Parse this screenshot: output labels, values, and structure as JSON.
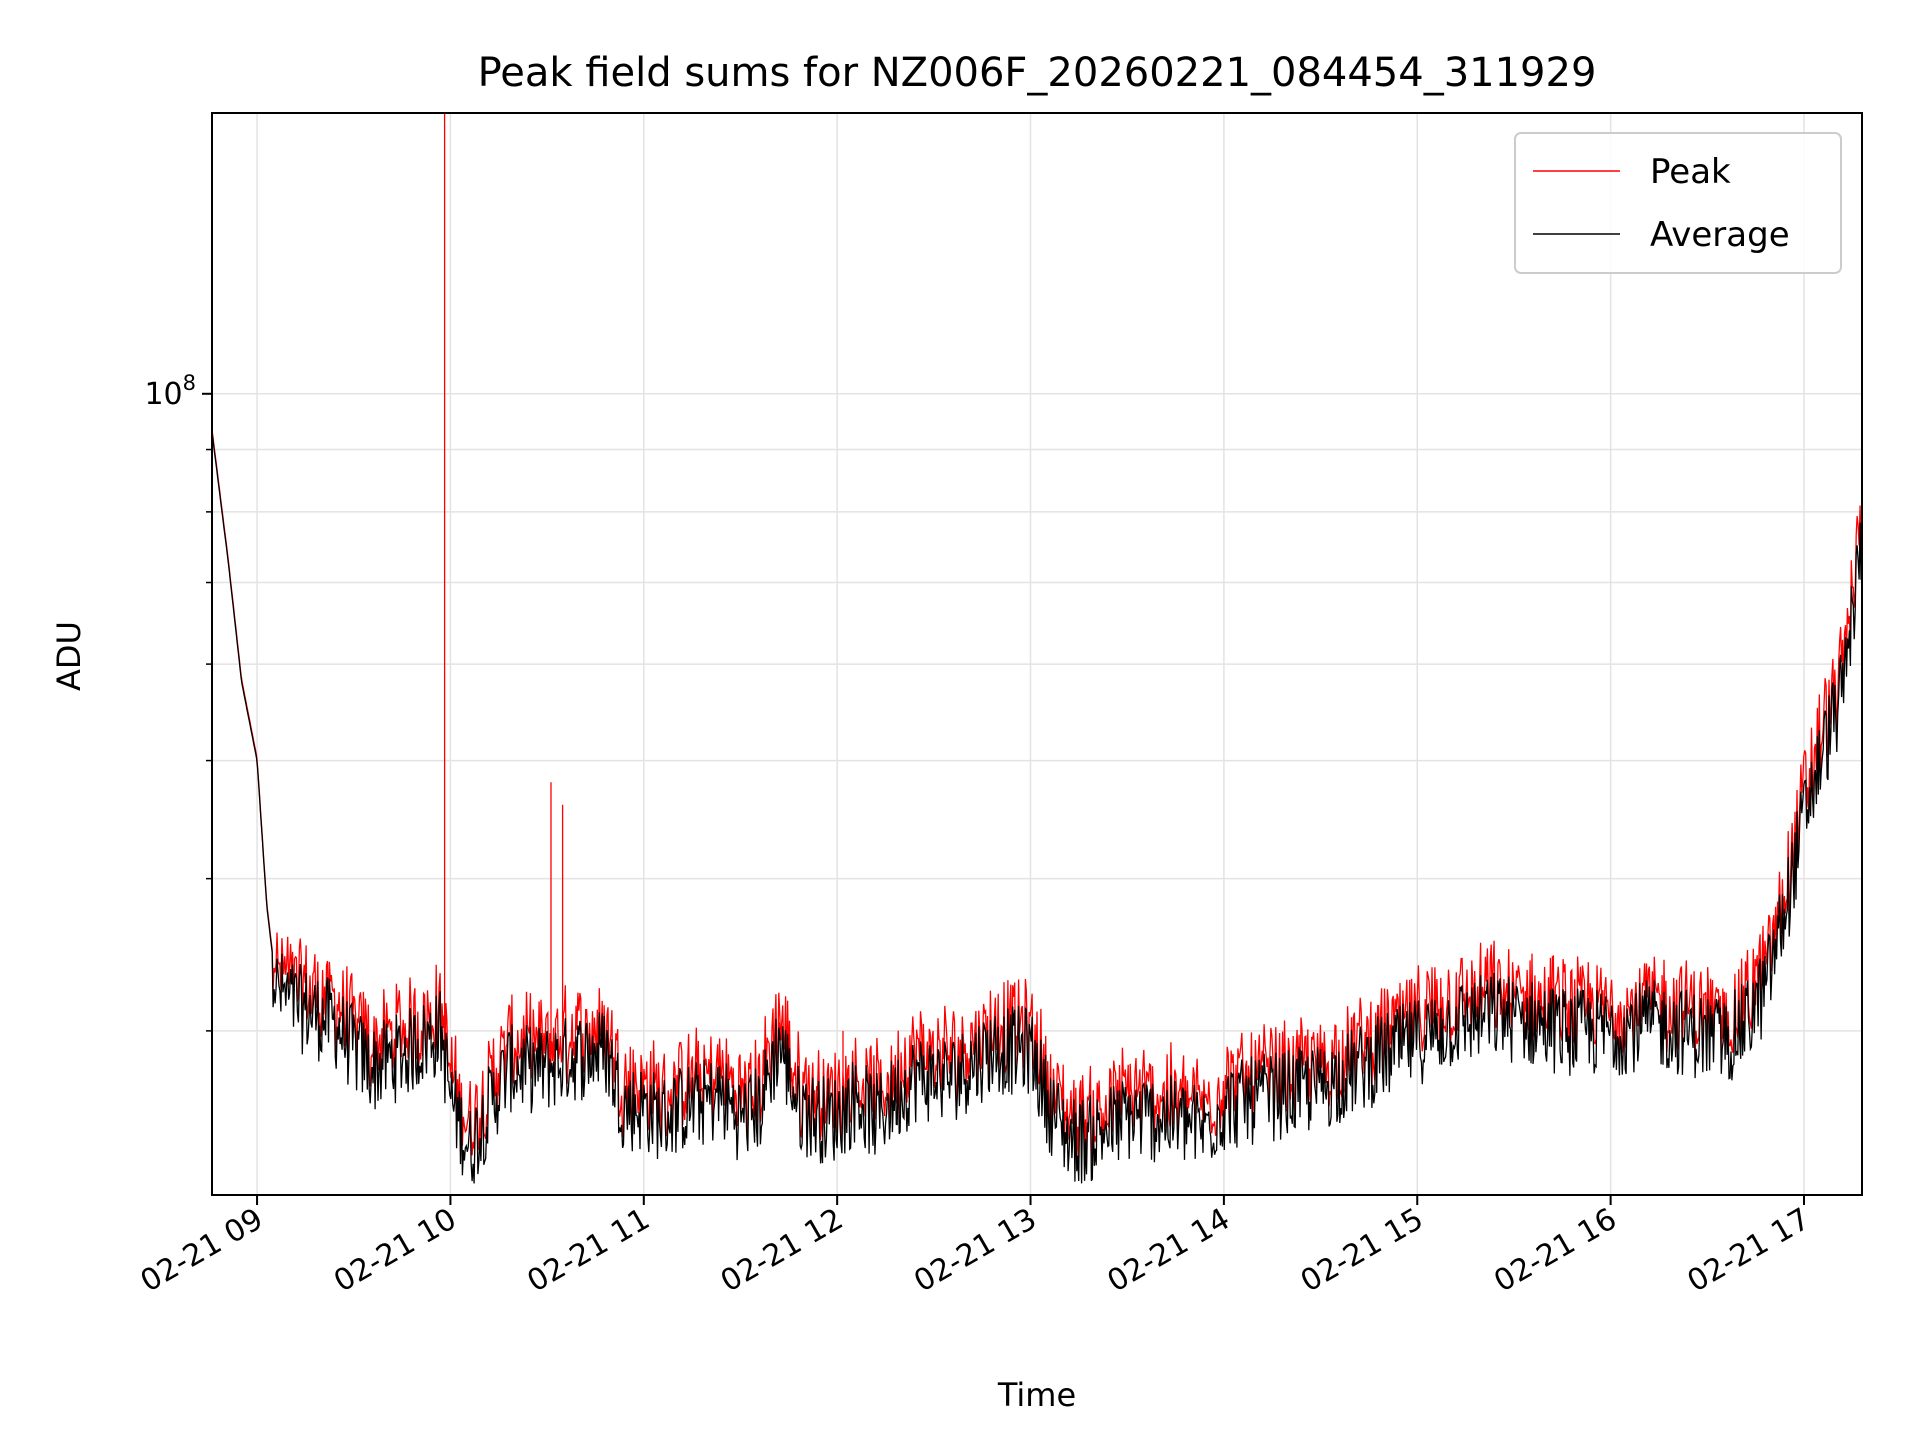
{
  "chart_data": {
    "type": "line",
    "title": "Peak field sums for NZ006F_20260221_084454_311929",
    "xlabel": "Time",
    "ylabel": "ADU",
    "yscale": "log",
    "ylim": [
      22000000,
      170000000
    ],
    "xlim": [
      8.767,
      17.3
    ],
    "grid": true,
    "legend_position": "top-right",
    "y_major_tick": {
      "value": 100000000,
      "label_base": "10",
      "label_exp": "8"
    },
    "y_minor_ticks": [
      30000000,
      40000000,
      50000000,
      60000000,
      70000000,
      80000000,
      90000000
    ],
    "x_ticks": [
      {
        "value": 9,
        "label": "02-21 09"
      },
      {
        "value": 10,
        "label": "02-21 10"
      },
      {
        "value": 11,
        "label": "02-21 11"
      },
      {
        "value": 12,
        "label": "02-21 12"
      },
      {
        "value": 13,
        "label": "02-21 13"
      },
      {
        "value": 14,
        "label": "02-21 14"
      },
      {
        "value": 15,
        "label": "02-21 15"
      },
      {
        "value": 16,
        "label": "02-21 16"
      },
      {
        "value": 17,
        "label": "02-21 17"
      }
    ],
    "series": [
      {
        "name": "Peak",
        "color": "#ff0000"
      },
      {
        "name": "Average",
        "color": "#000000"
      }
    ],
    "baseline_points": [
      [
        8.767,
        93000000
      ],
      [
        8.85,
        73000000
      ],
      [
        8.92,
        58000000
      ],
      [
        9.0,
        50000000
      ],
      [
        9.05,
        38000000
      ],
      [
        9.1,
        32500000
      ],
      [
        9.2,
        31500000
      ],
      [
        9.4,
        30500000
      ],
      [
        9.5,
        29000000
      ],
      [
        9.6,
        28000000
      ],
      [
        9.8,
        29000000
      ],
      [
        9.95,
        30000000
      ],
      [
        10.0,
        26500000
      ],
      [
        10.1,
        24000000
      ],
      [
        10.2,
        26000000
      ],
      [
        10.3,
        28000000
      ],
      [
        10.5,
        28000000
      ],
      [
        10.6,
        28500000
      ],
      [
        10.8,
        29000000
      ],
      [
        10.9,
        26000000
      ],
      [
        11.0,
        26000000
      ],
      [
        11.1,
        25500000
      ],
      [
        11.2,
        26000000
      ],
      [
        11.4,
        26500000
      ],
      [
        11.5,
        25500000
      ],
      [
        11.6,
        26000000
      ],
      [
        11.7,
        29500000
      ],
      [
        11.8,
        26000000
      ],
      [
        11.9,
        25500000
      ],
      [
        12.0,
        25500000
      ],
      [
        12.1,
        26500000
      ],
      [
        12.2,
        25500000
      ],
      [
        12.4,
        27500000
      ],
      [
        12.6,
        27500000
      ],
      [
        12.8,
        29000000
      ],
      [
        13.0,
        29000000
      ],
      [
        13.1,
        26000000
      ],
      [
        13.2,
        24500000
      ],
      [
        13.3,
        24500000
      ],
      [
        13.5,
        25500000
      ],
      [
        13.7,
        25500000
      ],
      [
        13.9,
        25000000
      ],
      [
        14.0,
        26000000
      ],
      [
        14.2,
        26500000
      ],
      [
        14.5,
        27000000
      ],
      [
        14.7,
        28000000
      ],
      [
        15.0,
        29500000
      ],
      [
        15.2,
        30500000
      ],
      [
        15.4,
        31000000
      ],
      [
        15.6,
        30500000
      ],
      [
        15.8,
        30000000
      ],
      [
        16.0,
        30000000
      ],
      [
        16.2,
        30500000
      ],
      [
        16.4,
        30000000
      ],
      [
        16.6,
        29500000
      ],
      [
        16.7,
        30500000
      ],
      [
        16.8,
        32500000
      ],
      [
        16.9,
        37500000
      ],
      [
        17.0,
        45000000
      ],
      [
        17.1,
        51000000
      ],
      [
        17.2,
        57000000
      ],
      [
        17.3,
        76000000
      ]
    ],
    "peak_spikes": [
      [
        9.97,
        170000000
      ],
      [
        10.52,
        48000000
      ],
      [
        10.58,
        46000000
      ],
      [
        11.7,
        30500000
      ],
      [
        12.03,
        30000000
      ],
      [
        15.43,
        33000000
      ],
      [
        16.58,
        32500000
      ],
      [
        16.75,
        33000000
      ]
    ],
    "legend_entries": [
      "Peak",
      "Average"
    ]
  }
}
